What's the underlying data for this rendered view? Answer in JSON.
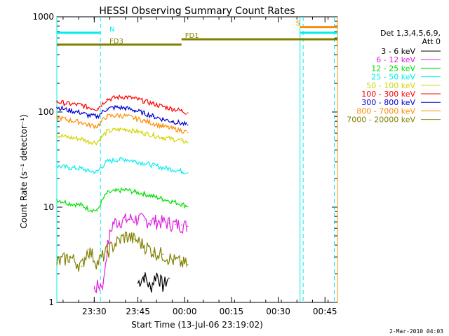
{
  "chart_data": {
    "type": "line",
    "title": "HESSI Observing Summary Count Rates",
    "xlabel": "Start Time (13-Jul-06 23:19:02)",
    "ylabel": "Count Rate (s⁻¹ detector⁻¹)",
    "y_scale": "log",
    "ylim": [
      1,
      1000
    ],
    "x_unit": "minutes since 23:19:02",
    "xlim": [
      0,
      90
    ],
    "x_ticks": [
      {
        "x": 12,
        "label": "23:30"
      },
      {
        "x": 26,
        "label": "23:45"
      },
      {
        "x": 41,
        "label": "00:00"
      },
      {
        "x": 56,
        "label": "00:15"
      },
      {
        "x": 71,
        "label": "00:30"
      },
      {
        "x": 86,
        "label": "00:45"
      }
    ],
    "y_ticks": [
      {
        "y": 1,
        "label": "1"
      },
      {
        "y": 10,
        "label": "10"
      },
      {
        "y": 100,
        "label": "100"
      },
      {
        "y": 1000,
        "label": "1000"
      }
    ],
    "legend": {
      "position": "right",
      "header": [
        "Det 1,3,4,5,6,9,",
        "Att 0"
      ]
    },
    "series": [
      {
        "name": "3 - 6 keV",
        "color": "#000000",
        "x": [
          26,
          28,
          30,
          32,
          34,
          36
        ],
        "y": [
          1.6,
          1.9,
          1.4,
          2.0,
          1.5,
          1.8
        ]
      },
      {
        "name": "6 - 12 keV",
        "color": "#e020e0",
        "x": [
          12,
          15,
          18,
          20,
          22,
          24,
          26,
          28,
          30,
          32,
          34,
          36,
          38,
          40,
          42
        ],
        "y": [
          1.4,
          1.6,
          6.8,
          7.2,
          7.4,
          7.6,
          7.5,
          7.3,
          7.2,
          7.1,
          7.0,
          6.8,
          6.6,
          6.5,
          6.3
        ]
      },
      {
        "name": "12 - 25 keV",
        "color": "#00e000",
        "x": [
          0,
          4,
          8,
          10,
          13,
          16,
          19,
          22,
          25,
          28,
          31,
          34,
          37,
          40,
          42
        ],
        "y": [
          12,
          11,
          10.5,
          9.6,
          9.2,
          14,
          14.8,
          15.2,
          14.5,
          13.8,
          13,
          12.2,
          11.5,
          10.8,
          10.2
        ]
      },
      {
        "name": "25 - 50 keV",
        "color": "#00eeee",
        "x": [
          0,
          4,
          8,
          10,
          13,
          16,
          19,
          22,
          25,
          28,
          31,
          34,
          37,
          40,
          42
        ],
        "y": [
          27,
          26,
          25.5,
          24,
          23.5,
          30,
          31.5,
          32,
          30.5,
          29,
          27.5,
          26,
          25,
          24,
          23
        ]
      },
      {
        "name": "50 - 100 keV",
        "color": "#d4d400",
        "x": [
          0,
          4,
          8,
          10,
          13,
          16,
          19,
          22,
          25,
          28,
          31,
          34,
          37,
          40,
          42
        ],
        "y": [
          57,
          54,
          52,
          49,
          48,
          62,
          65,
          66,
          63,
          60,
          57,
          54,
          52,
          50,
          48
        ]
      },
      {
        "name": "100 - 300 keV",
        "color": "#ff0000",
        "x": [
          0,
          4,
          8,
          10,
          13,
          16,
          19,
          22,
          25,
          28,
          31,
          34,
          37,
          40,
          42
        ],
        "y": [
          128,
          122,
          118,
          112,
          108,
          135,
          142,
          145,
          138,
          130,
          122,
          114,
          108,
          103,
          98
        ]
      },
      {
        "name": "300 - 800 keV",
        "color": "#0000cc",
        "x": [
          0,
          4,
          8,
          10,
          13,
          16,
          19,
          22,
          25,
          28,
          31,
          34,
          37,
          40,
          42
        ],
        "y": [
          112,
          104,
          98,
          92,
          90,
          108,
          112,
          110,
          104,
          97,
          90,
          84,
          80,
          76,
          73
        ]
      },
      {
        "name": "800 - 7000 keV",
        "color": "#ff8c00",
        "x": [
          0,
          4,
          8,
          10,
          13,
          16,
          19,
          22,
          25,
          28,
          31,
          34,
          37,
          40,
          42
        ],
        "y": [
          88,
          82,
          78,
          73,
          71,
          90,
          92,
          91,
          86,
          81,
          76,
          71,
          67,
          64,
          61
        ]
      },
      {
        "name": "7000 - 20000 keV",
        "color": "#808000",
        "x": [
          0,
          4,
          8,
          10,
          13,
          16,
          19,
          22,
          25,
          28,
          31,
          34,
          37,
          40,
          42
        ],
        "y": [
          2.6,
          3.0,
          2.4,
          3.6,
          2.6,
          3.4,
          4.2,
          5.0,
          4.6,
          4.0,
          3.4,
          3.2,
          2.8,
          2.6,
          2.5
        ]
      }
    ],
    "flags": [
      {
        "label": "N",
        "color": "#00eeee",
        "start": 0,
        "end": 14,
        "y": 680
      },
      {
        "label": "S",
        "color": "#ff8c00",
        "start": 78,
        "end": 90,
        "y": 780
      },
      {
        "label": "",
        "color": "#00eeee",
        "start": 78,
        "end": 90,
        "y": 680
      },
      {
        "label": "FD1",
        "color": "#808000",
        "start": 40,
        "end": 90,
        "y": 580
      },
      {
        "label": "FD3",
        "color": "#808000",
        "start": 0,
        "end": 40,
        "y": 510
      }
    ],
    "vlines": [
      {
        "x": 0,
        "color": "#00eeee",
        "dash": false
      },
      {
        "x": 14,
        "color": "#00eeee",
        "dash": true
      },
      {
        "x": 78,
        "color": "#00eeee",
        "dash": false
      },
      {
        "x": 79,
        "color": "#00eeee",
        "dash": true
      },
      {
        "x": 89,
        "color": "#00eeee",
        "dash": true
      },
      {
        "x": 90,
        "color": "#ff8c00",
        "dash": false
      }
    ]
  },
  "footer": "2-Mar-2010 04:03"
}
